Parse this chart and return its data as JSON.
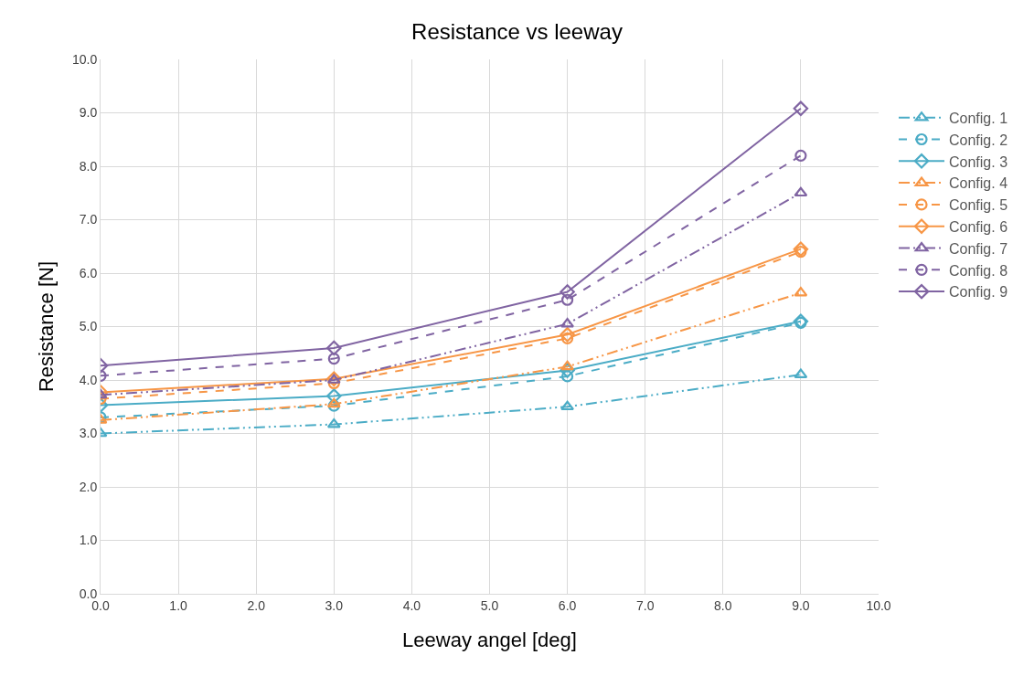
{
  "chart_data": {
    "type": "line",
    "title": "Resistance vs leeway",
    "xlabel": "Leeway angel [deg]",
    "ylabel": "Resistance [N]",
    "x": [
      0,
      3,
      6,
      9
    ],
    "series": [
      {
        "name": "Config. 1",
        "color": "#4bacc6",
        "marker": "triangle",
        "line_style": "dashdot",
        "values": [
          3.0,
          3.17,
          3.5,
          4.1
        ]
      },
      {
        "name": "Config. 2",
        "color": "#4bacc6",
        "marker": "circle",
        "line_style": "dashed",
        "values": [
          3.3,
          3.52,
          4.07,
          5.07
        ]
      },
      {
        "name": "Config. 3",
        "color": "#4bacc6",
        "marker": "diamond",
        "line_style": "solid",
        "values": [
          3.53,
          3.7,
          4.18,
          5.1
        ]
      },
      {
        "name": "Config. 4",
        "color": "#f79646",
        "marker": "triangle",
        "line_style": "dashdot",
        "values": [
          3.25,
          3.55,
          4.25,
          5.63
        ]
      },
      {
        "name": "Config. 5",
        "color": "#f79646",
        "marker": "circle",
        "line_style": "dashed",
        "values": [
          3.65,
          3.94,
          4.78,
          6.4
        ]
      },
      {
        "name": "Config. 6",
        "color": "#f79646",
        "marker": "diamond",
        "line_style": "solid",
        "values": [
          3.77,
          4.02,
          4.85,
          6.45
        ]
      },
      {
        "name": "Config. 7",
        "color": "#8064a2",
        "marker": "triangle",
        "line_style": "dashdot",
        "values": [
          3.72,
          4.0,
          5.05,
          7.5
        ]
      },
      {
        "name": "Config. 8",
        "color": "#8064a2",
        "marker": "circle",
        "line_style": "dashed",
        "values": [
          4.08,
          4.4,
          5.5,
          8.2
        ]
      },
      {
        "name": "Config. 9",
        "color": "#8064a2",
        "marker": "diamond",
        "line_style": "solid",
        "values": [
          4.27,
          4.6,
          5.65,
          9.08
        ]
      }
    ],
    "xlim": [
      0,
      10
    ],
    "ylim": [
      0,
      10
    ],
    "xticks": [
      {
        "value": 0,
        "label": "0.0"
      },
      {
        "value": 1,
        "label": "1.0"
      },
      {
        "value": 2,
        "label": "2.0"
      },
      {
        "value": 3,
        "label": "3.0"
      },
      {
        "value": 4,
        "label": "4.0"
      },
      {
        "value": 5,
        "label": "5.0"
      },
      {
        "value": 6,
        "label": "6.0"
      },
      {
        "value": 7,
        "label": "7.0"
      },
      {
        "value": 8,
        "label": "8.0"
      },
      {
        "value": 9,
        "label": "9.0"
      },
      {
        "value": 10,
        "label": "10.0"
      }
    ],
    "yticks": [
      {
        "value": 0,
        "label": "0.0"
      },
      {
        "value": 1,
        "label": "1.0"
      },
      {
        "value": 2,
        "label": "2.0"
      },
      {
        "value": 3,
        "label": "3.0"
      },
      {
        "value": 4,
        "label": "4.0"
      },
      {
        "value": 5,
        "label": "5.0"
      },
      {
        "value": 6,
        "label": "6.0"
      },
      {
        "value": 7,
        "label": "7.0"
      },
      {
        "value": 8,
        "label": "8.0"
      },
      {
        "value": 9,
        "label": "9.0"
      },
      {
        "value": 10,
        "label": "10.0"
      }
    ],
    "grid": true,
    "legend": "right"
  }
}
